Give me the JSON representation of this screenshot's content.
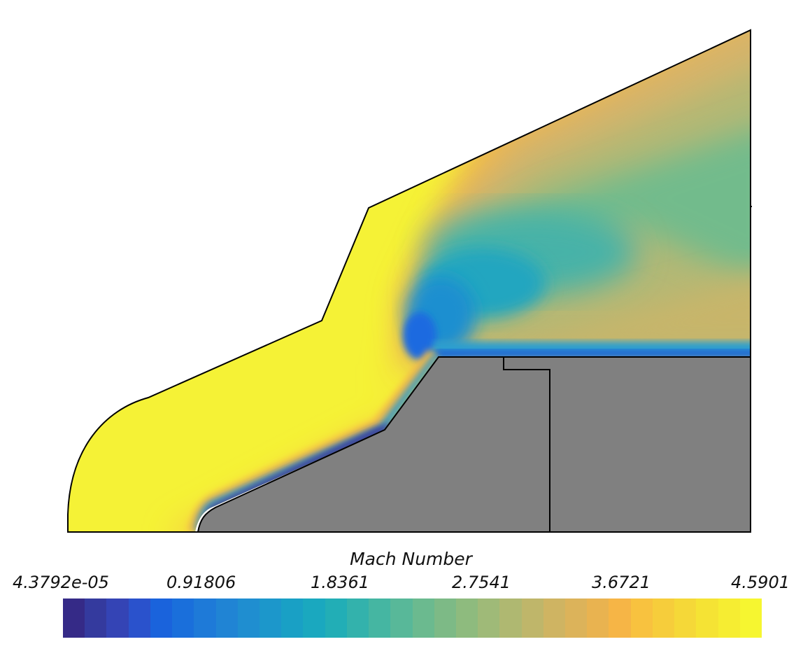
{
  "figure": {
    "colorbar_title": "Mach Number",
    "colorbar_ticks": [
      "4.3792e-05",
      "0.91806",
      "1.8361",
      "2.7541",
      "3.6721",
      "4.5901"
    ],
    "colorbar_range": [
      4.3792e-05,
      4.5901
    ],
    "colormap_colors": [
      "#352a87",
      "#343a9e",
      "#3444b5",
      "#2a52cc",
      "#1a63dc",
      "#1a6fdb",
      "#1e7ad8",
      "#2084d4",
      "#1f8ed0",
      "#1c97cb",
      "#19a0c5",
      "#1aa8bf",
      "#22aeb6",
      "#33b2ac",
      "#45b6a2",
      "#58b899",
      "#6bba8f",
      "#7dba86",
      "#8ebb7e",
      "#9fba78",
      "#afb871",
      "#bfb66a",
      "#cfb462",
      "#dcb35a",
      "#e9b350",
      "#f6b546",
      "#f8c23f",
      "#f6cd3b",
      "#f5d838",
      "#f5e334",
      "#f6ed32",
      "#f6f630"
    ],
    "solid_region_color": "#808080"
  }
}
